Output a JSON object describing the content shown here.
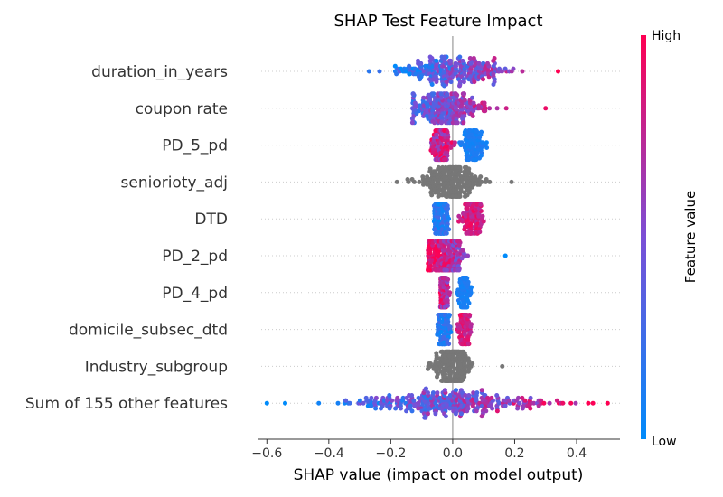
{
  "chart_data": {
    "type": "scatter",
    "subtype": "shap-beeswarm",
    "title": "SHAP Test Feature Impact",
    "xlabel": "SHAP value (impact on model output)",
    "ylabel": "",
    "xlim": [
      -0.63,
      0.54
    ],
    "xticks": [
      -0.6,
      -0.4,
      -0.2,
      0.0,
      0.2,
      0.4
    ],
    "xtick_labels": [
      "−0.6",
      "−0.4",
      "−0.2",
      "0.0",
      "0.2",
      "0.4"
    ],
    "grid": "dotted horizontal feature lines",
    "colorbar": {
      "label": "Feature value",
      "high_label": "High",
      "low_label": "Low",
      "high_color": "#ff0052",
      "low_color": "#008bfb",
      "no_value_color": "#777777"
    },
    "features": [
      {
        "name": "duration_in_years",
        "min": -0.27,
        "max": 0.34,
        "median": 0.0,
        "spread": 0.09,
        "color_mode": "pos_high"
      },
      {
        "name": "coupon rate",
        "min": -0.13,
        "max": 0.3,
        "median": -0.02,
        "spread": 0.06,
        "color_mode": "mixed_pos_high"
      },
      {
        "name": "PD_5_pd",
        "min": -0.07,
        "max": 0.11,
        "median": -0.04,
        "spread": 0.03,
        "color_mode": "bimodal_neg_high"
      },
      {
        "name": "seniorioty_adj",
        "min": -0.18,
        "max": 0.19,
        "median": 0.0,
        "spread": 0.05,
        "color_mode": "gray"
      },
      {
        "name": "DTD",
        "min": -0.06,
        "max": 0.1,
        "median": -0.04,
        "spread": 0.03,
        "color_mode": "bimodal_pos_high"
      },
      {
        "name": "PD_2_pd",
        "min": -0.08,
        "max": 0.17,
        "median": -0.03,
        "spread": 0.03,
        "color_mode": "neg_high"
      },
      {
        "name": "PD_4_pd",
        "min": -0.04,
        "max": 0.06,
        "median": -0.03,
        "spread": 0.015,
        "color_mode": "bimodal_neg_high"
      },
      {
        "name": "domicile_subsec_dtd",
        "min": -0.05,
        "max": 0.06,
        "median": -0.03,
        "spread": 0.02,
        "color_mode": "bimodal_pos_high"
      },
      {
        "name": "Industry_subgroup",
        "min": -0.08,
        "max": 0.16,
        "median": 0.0,
        "spread": 0.03,
        "color_mode": "gray"
      },
      {
        "name": "Sum of 155 other features",
        "min": -0.6,
        "max": 0.5,
        "median": 0.0,
        "spread": 0.16,
        "color_mode": "pos_high"
      }
    ]
  }
}
